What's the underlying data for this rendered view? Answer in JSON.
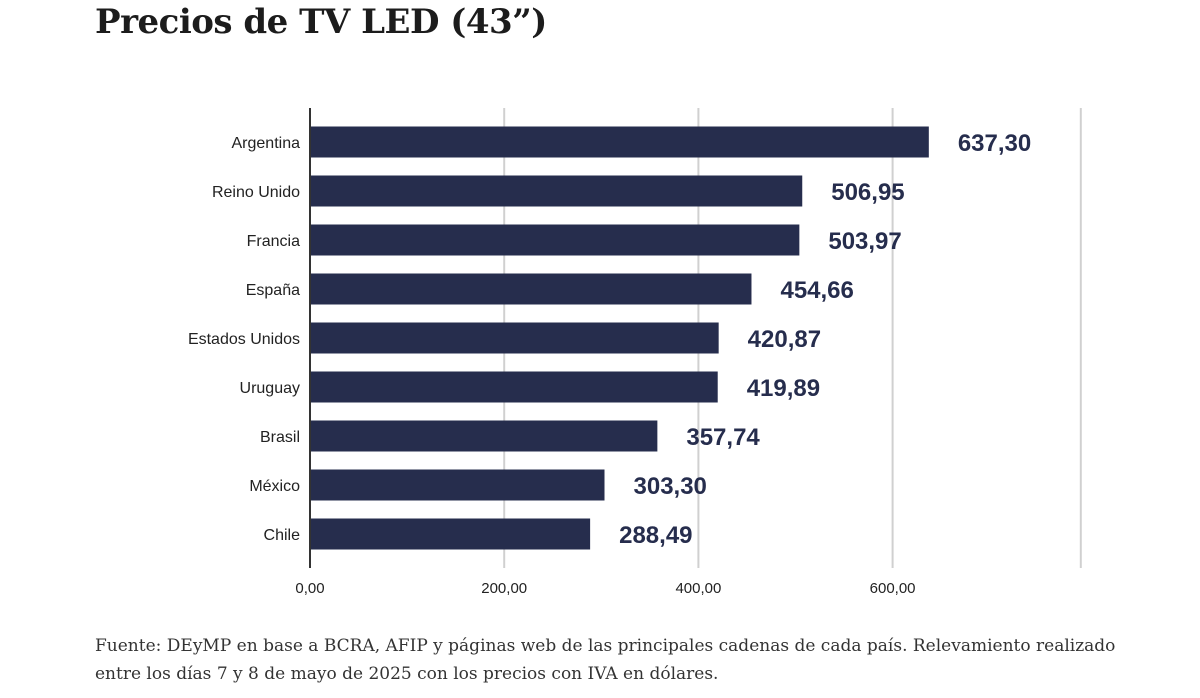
{
  "title": "Precios de TV LED (43”)",
  "source": "Fuente: DEyMP en base a BCRA, AFIP y páginas web de las principales cadenas de cada país. Relevamiento realizado entre los días 7 y 8 de mayo de 2025 con los precios con IVA en dólares.",
  "colors": {
    "bar": "#262d4d",
    "value_label": "#262d4d",
    "grid": "#d0d0d0",
    "axis": "#333333"
  },
  "chart_data": {
    "type": "bar",
    "orientation": "horizontal",
    "title": "Precios de TV LED (43”)",
    "categories": [
      "Argentina",
      "Reino Unido",
      "Francia",
      "España",
      "Estados Unidos",
      "Uruguay",
      "Brasil",
      "México",
      "Chile"
    ],
    "values": [
      637.3,
      506.95,
      503.97,
      454.66,
      420.87,
      419.89,
      357.74,
      303.3,
      288.49
    ],
    "value_labels": [
      "637,30",
      "506,95",
      "503,97",
      "454,66",
      "420,87",
      "419,89",
      "357,74",
      "303,30",
      "288,49"
    ],
    "xticks": [
      0,
      200,
      400,
      600
    ],
    "xtick_labels": [
      "0,00",
      "200,00",
      "400,00",
      "600,00"
    ],
    "xlim": [
      0,
      800
    ],
    "xlabel": "",
    "ylabel": "",
    "grid": true
  }
}
